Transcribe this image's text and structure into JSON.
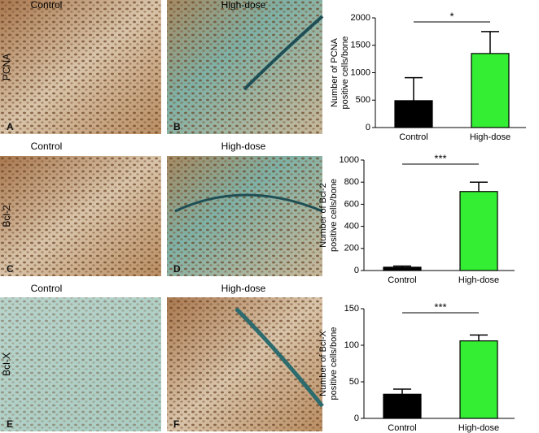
{
  "micrograph_rows": [
    {
      "marker": "PCNA",
      "columns": [
        "Control",
        "High-dose"
      ],
      "panels": [
        "A",
        "B"
      ]
    },
    {
      "marker": "Bcl-2",
      "columns": [
        "Control",
        "High-dose"
      ],
      "panels": [
        "C",
        "D"
      ]
    },
    {
      "marker": "Bcl-X",
      "columns": [
        "Control",
        "High-dose"
      ],
      "panels": [
        "E",
        "F"
      ]
    }
  ],
  "chart_data": [
    {
      "type": "bar",
      "ylabel": [
        "Number of PCNA",
        "positive cells/bone"
      ],
      "categories": [
        "Control",
        "High-dose"
      ],
      "values": [
        490,
        1350
      ],
      "errors": [
        420,
        400
      ],
      "colors": [
        "#000000",
        "#33ee33"
      ],
      "ylim": [
        0,
        2000
      ],
      "yticks": [
        0,
        500,
        1000,
        1500,
        2000
      ],
      "annotation": "*"
    },
    {
      "type": "bar",
      "ylabel": [
        "Number of Bcl-2",
        "positive cells/bone"
      ],
      "categories": [
        "Control",
        "High-dose"
      ],
      "values": [
        30,
        715
      ],
      "errors": [
        10,
        85
      ],
      "colors": [
        "#000000",
        "#33ee33"
      ],
      "ylim": [
        0,
        1000
      ],
      "yticks": [
        0,
        200,
        400,
        600,
        800,
        1000
      ],
      "annotation": "***"
    },
    {
      "type": "bar",
      "ylabel": [
        "Number of Bcl-X",
        "positive cells/bone"
      ],
      "categories": [
        "Control",
        "High-dose"
      ],
      "values": [
        33,
        106
      ],
      "errors": [
        7,
        8
      ],
      "colors": [
        "#000000",
        "#33ee33"
      ],
      "ylim": [
        0,
        150
      ],
      "yticks": [
        0,
        50,
        100,
        150
      ],
      "annotation": "***"
    }
  ]
}
